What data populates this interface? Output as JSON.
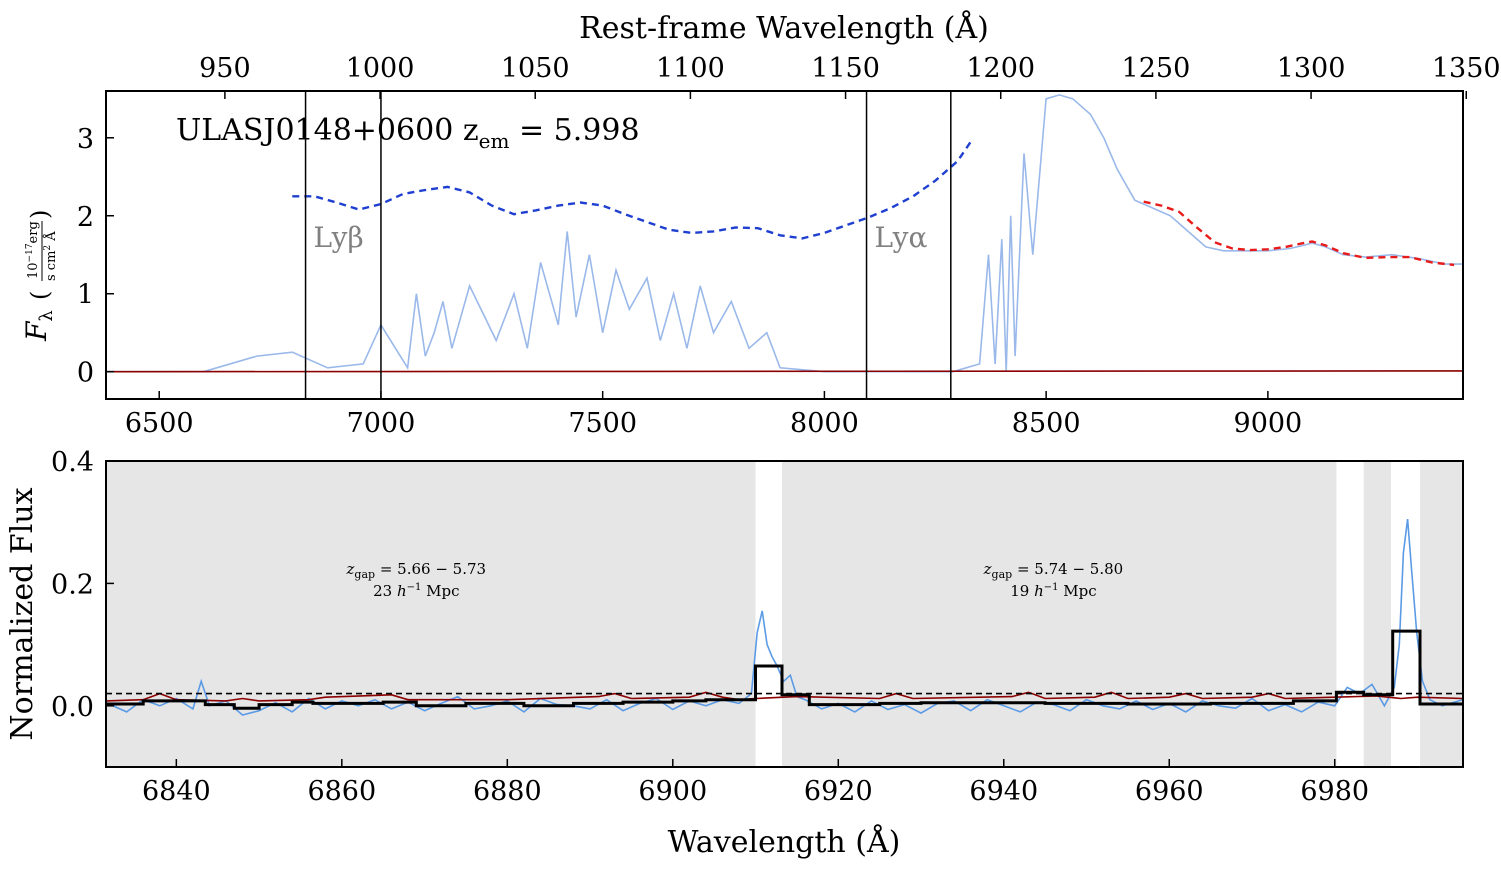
{
  "chart_data": [
    {
      "type": "line",
      "annotation": "ULASJ0148+0600 z",
      "annotation_sub": "em",
      "annotation_value": " = 5.998",
      "ylabel": "F",
      "ylabel_sub": "λ",
      "yunit_num": "10",
      "yunit_exp": "−17",
      "yunit_num_tail": "erg",
      "yunit_den": "s cm",
      "yunit_den_exp": "2",
      "yunit_den_tail": " Å",
      "x_top_label": "Rest-frame Wavelength (Å)",
      "xlim": [
        6380,
        9440
      ],
      "ylim": [
        -0.35,
        3.6
      ],
      "x_ticks": [
        6500,
        7000,
        7500,
        8000,
        8500,
        9000
      ],
      "y_ticks": [
        0,
        1,
        2,
        3
      ],
      "rest_ticks": [
        950,
        1000,
        1050,
        1100,
        1150,
        1200,
        1250,
        1300,
        1350
      ],
      "z_em": 5.998,
      "line_markers": [
        {
          "label": "Lyβ",
          "x": [
            6830,
            7000
          ]
        },
        {
          "label": "Lyα",
          "x": [
            8095,
            8285
          ]
        }
      ],
      "series": [
        {
          "color": "#9ab9ea",
          "x": [
            6380,
            6600,
            6720,
            6800,
            6880,
            6960,
            7000,
            7060,
            7080,
            7100,
            7120,
            7140,
            7160,
            7200,
            7260,
            7300,
            7330,
            7360,
            7400,
            7420,
            7440,
            7470,
            7500,
            7530,
            7560,
            7600,
            7630,
            7660,
            7690,
            7720,
            7750,
            7790,
            7830,
            7870,
            7900,
            8000,
            8100,
            8200,
            8290,
            8350,
            8370,
            8385,
            8400,
            8410,
            8420,
            8430,
            8450,
            8470,
            8500,
            8530,
            8560,
            8600,
            8630,
            8660,
            8700,
            8740,
            8780,
            8820,
            8860,
            8900,
            8950,
            9000,
            9050,
            9080,
            9100,
            9130,
            9170,
            9220,
            9280,
            9340,
            9400,
            9440
          ],
          "y": [
            0.0,
            0.0,
            0.2,
            0.25,
            0.05,
            0.1,
            0.6,
            0.05,
            1.0,
            0.2,
            0.5,
            0.9,
            0.3,
            1.1,
            0.4,
            1.0,
            0.3,
            1.4,
            0.6,
            1.8,
            0.7,
            1.5,
            0.5,
            1.3,
            0.8,
            1.2,
            0.4,
            1.0,
            0.3,
            1.1,
            0.5,
            0.9,
            0.3,
            0.5,
            0.05,
            0.0,
            0.0,
            0.0,
            0.0,
            0.1,
            1.5,
            0.1,
            1.7,
            0.0,
            2.0,
            0.2,
            2.8,
            1.5,
            3.5,
            3.55,
            3.5,
            3.3,
            3.0,
            2.6,
            2.2,
            2.1,
            2.0,
            1.8,
            1.6,
            1.55,
            1.55,
            1.55,
            1.58,
            1.62,
            1.65,
            1.6,
            1.5,
            1.47,
            1.5,
            1.45,
            1.38,
            1.38
          ]
        },
        {
          "color": "#1f3fd0",
          "dash": true,
          "x": [
            6800,
            6850,
            6900,
            6950,
            7000,
            7050,
            7100,
            7150,
            7200,
            7250,
            7300,
            7350,
            7400,
            7450,
            7500,
            7550,
            7600,
            7650,
            7700,
            7750,
            7800,
            7850,
            7900,
            7950,
            8000,
            8050,
            8100,
            8150,
            8200,
            8250,
            8300,
            8330
          ],
          "y": [
            2.25,
            2.25,
            2.17,
            2.08,
            2.15,
            2.28,
            2.33,
            2.37,
            2.3,
            2.13,
            2.02,
            2.07,
            2.13,
            2.17,
            2.13,
            2.02,
            1.92,
            1.82,
            1.78,
            1.8,
            1.85,
            1.84,
            1.75,
            1.71,
            1.78,
            1.88,
            1.98,
            2.1,
            2.25,
            2.45,
            2.7,
            2.95
          ]
        },
        {
          "color": "#e81a1a",
          "dash": true,
          "x": [
            8720,
            8760,
            8800,
            8840,
            8880,
            8920,
            8960,
            9000,
            9040,
            9080,
            9100,
            9130,
            9170,
            9220,
            9270,
            9320,
            9370,
            9420
          ],
          "y": [
            2.18,
            2.13,
            2.05,
            1.85,
            1.66,
            1.58,
            1.56,
            1.57,
            1.6,
            1.65,
            1.67,
            1.62,
            1.52,
            1.46,
            1.47,
            1.47,
            1.4,
            1.37
          ]
        },
        {
          "color": "#8b0000",
          "x": [
            6380,
            9440
          ],
          "y": [
            0.0,
            0.01
          ]
        }
      ]
    },
    {
      "type": "line",
      "xlabel": "Wavelength (Å)",
      "ylabel": "Normalized Flux",
      "xlim": [
        6831.5,
        6995.5
      ],
      "ylim": [
        -0.1,
        0.4
      ],
      "x_ticks": [
        6840,
        6860,
        6880,
        6900,
        6920,
        6940,
        6960,
        6980
      ],
      "y_tick_labels": [
        "0.4",
        "0.2",
        "0.0"
      ],
      "y_ticks": [
        0.4,
        0.2,
        0.0
      ],
      "threshold": 0.02,
      "gaps": [
        {
          "label": "z",
          "label_sub": "gap",
          "label_value": " = 5.66 − 5.73",
          "size": "23 ",
          "size_h": "h",
          "size_exp": "−1",
          "size_unit": " Mpc",
          "label_x": 6869,
          "label_y": 0.215
        },
        {
          "label": "z",
          "label_sub": "gap",
          "label_value": " = 5.74 − 5.80",
          "size": "19 ",
          "size_h": "h",
          "size_exp": "−1",
          "size_unit": " Mpc",
          "label_x": 6946,
          "label_y": 0.215
        }
      ],
      "shaded": [
        [
          6831.5,
          6910
        ],
        [
          6913.2,
          6980.2
        ],
        [
          6983.5,
          6986.8
        ],
        [
          6990.3,
          6995.5
        ]
      ],
      "bins": [
        {
          "x": [
            6831.5,
            6836
          ],
          "y": 0.003
        },
        {
          "x": [
            6836,
            6843.5
          ],
          "y": 0.008
        },
        {
          "x": [
            6843.5,
            6847
          ],
          "y": 0.002
        },
        {
          "x": [
            6847,
            6850
          ],
          "y": -0.004
        },
        {
          "x": [
            6850,
            6854
          ],
          "y": 0.002
        },
        {
          "x": [
            6854,
            6856.5
          ],
          "y": 0.006
        },
        {
          "x": [
            6856.5,
            6865
          ],
          "y": 0.004
        },
        {
          "x": [
            6865,
            6869
          ],
          "y": 0.006
        },
        {
          "x": [
            6869,
            6875
          ],
          "y": 0.0
        },
        {
          "x": [
            6875,
            6882
          ],
          "y": 0.004
        },
        {
          "x": [
            6882,
            6888
          ],
          "y": 0.0
        },
        {
          "x": [
            6888,
            6894
          ],
          "y": 0.004
        },
        {
          "x": [
            6894,
            6900
          ],
          "y": 0.006
        },
        {
          "x": [
            6900,
            6904
          ],
          "y": 0.008
        },
        {
          "x": [
            6904,
            6910
          ],
          "y": 0.01
        },
        {
          "x": [
            6910,
            6913.2
          ],
          "y": 0.065
        },
        {
          "x": [
            6913.2,
            6916.5
          ],
          "y": 0.018
        },
        {
          "x": [
            6916.5,
            6925
          ],
          "y": 0.002
        },
        {
          "x": [
            6925,
            6930
          ],
          "y": 0.004
        },
        {
          "x": [
            6930,
            6945
          ],
          "y": 0.005
        },
        {
          "x": [
            6945,
            6955
          ],
          "y": 0.004
        },
        {
          "x": [
            6955,
            6965
          ],
          "y": 0.003
        },
        {
          "x": [
            6965,
            6975
          ],
          "y": 0.004
        },
        {
          "x": [
            6975,
            6980.2
          ],
          "y": 0.008
        },
        {
          "x": [
            6980.2,
            6983.5
          ],
          "y": 0.022
        },
        {
          "x": [
            6983.5,
            6987
          ],
          "y": 0.018
        },
        {
          "x": [
            6987,
            6990.3
          ],
          "y": 0.122
        },
        {
          "x": [
            6990.3,
            6995.5
          ],
          "y": 0.003
        }
      ],
      "series": [
        {
          "color": "#5b9be6",
          "x": [
            6831.5,
            6834,
            6836,
            6838,
            6840,
            6842,
            6843,
            6844,
            6846,
            6848,
            6850,
            6852,
            6854,
            6856,
            6858,
            6860,
            6862,
            6864,
            6866,
            6868,
            6870,
            6872,
            6874,
            6876,
            6878,
            6880,
            6882,
            6884,
            6886,
            6888,
            6890,
            6892,
            6894,
            6896,
            6898,
            6900,
            6902,
            6904,
            6906,
            6908,
            6909.5,
            6910.2,
            6910.8,
            6911.4,
            6912,
            6912.6,
            6913.4,
            6914.2,
            6915,
            6916,
            6918,
            6920,
            6922,
            6924,
            6926,
            6928,
            6930,
            6932,
            6934,
            6936,
            6938,
            6940,
            6942,
            6944,
            6946,
            6948,
            6950,
            6952,
            6954,
            6956,
            6958,
            6960,
            6962,
            6964,
            6966,
            6968,
            6970,
            6972,
            6974,
            6976,
            6978,
            6980,
            6981.5,
            6983,
            6984.5,
            6986,
            6987.2,
            6987.8,
            6988.3,
            6988.8,
            6989.3,
            6989.9,
            6990.6,
            6991.5,
            6993,
            6995.5
          ],
          "y": [
            0.005,
            -0.01,
            0.01,
            0.0,
            0.012,
            -0.005,
            0.04,
            0.0,
            0.008,
            -0.015,
            -0.008,
            0.005,
            -0.01,
            0.012,
            -0.005,
            0.008,
            0.0,
            0.01,
            -0.005,
            0.006,
            -0.008,
            0.004,
            0.015,
            -0.005,
            0.0,
            0.008,
            -0.01,
            0.012,
            0.002,
            0.0,
            -0.005,
            0.01,
            -0.008,
            0.004,
            0.012,
            -0.006,
            0.008,
            0.0,
            0.01,
            0.004,
            0.02,
            0.12,
            0.155,
            0.1,
            0.08,
            0.065,
            0.04,
            0.05,
            0.015,
            0.01,
            -0.005,
            0.004,
            -0.01,
            0.008,
            -0.006,
            0.002,
            -0.012,
            0.004,
            0.008,
            -0.008,
            0.01,
            0.0,
            -0.01,
            0.006,
            0.002,
            -0.008,
            0.01,
            0.0,
            -0.005,
            0.008,
            -0.006,
            0.004,
            -0.01,
            0.008,
            0.0,
            -0.004,
            0.012,
            -0.008,
            0.002,
            -0.01,
            0.006,
            0.0,
            0.03,
            0.02,
            0.035,
            0.0,
            0.03,
            0.1,
            0.25,
            0.305,
            0.22,
            0.12,
            0.04,
            0.01,
            0.0,
            0.01
          ]
        },
        {
          "color": "#8b0000",
          "x": [
            6831.5,
            6836,
            6838,
            6840,
            6846,
            6848,
            6850,
            6856,
            6858,
            6866,
            6868,
            6880,
            6891,
            6893,
            6895,
            6902,
            6904,
            6906,
            6908,
            6910,
            6915,
            6925,
            6927,
            6929,
            6941,
            6943,
            6945,
            6951,
            6953,
            6955,
            6960,
            6962,
            6964,
            6970,
            6972,
            6974,
            6980,
            6985,
            6988,
            6990,
            6995.5
          ],
          "y": [
            0.008,
            0.01,
            0.02,
            0.01,
            0.008,
            0.012,
            0.008,
            0.01,
            0.014,
            0.018,
            0.01,
            0.01,
            0.015,
            0.02,
            0.012,
            0.014,
            0.022,
            0.014,
            0.01,
            0.012,
            0.015,
            0.012,
            0.02,
            0.012,
            0.015,
            0.022,
            0.012,
            0.014,
            0.022,
            0.012,
            0.014,
            0.02,
            0.012,
            0.014,
            0.02,
            0.012,
            0.014,
            0.016,
            0.012,
            0.014,
            0.012
          ]
        }
      ]
    }
  ]
}
